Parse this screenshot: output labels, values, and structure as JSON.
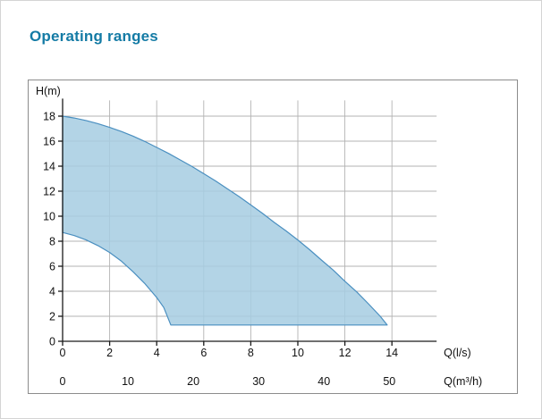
{
  "page": {
    "heading": "Operating ranges"
  },
  "chart_data": {
    "type": "area",
    "title": "Operating ranges",
    "description": "Pump operating range envelope: head H versus flow Q with dual flow scales",
    "y_axis": {
      "label": "H(m)",
      "ticks": [
        0,
        2,
        4,
        6,
        8,
        10,
        12,
        14,
        16,
        18
      ],
      "range": [
        0,
        19.4
      ]
    },
    "x_axis_primary": {
      "label": "Q(l/s)",
      "ticks": [
        0,
        2,
        4,
        6,
        8,
        10,
        12,
        14
      ],
      "range": [
        0,
        15.9
      ]
    },
    "x_axis_secondary": {
      "label": "Q(m³/h)",
      "ticks": [
        0,
        10,
        20,
        30,
        40,
        50
      ],
      "conversion_l_per_s": 3.6
    },
    "grid": true,
    "legend": "none",
    "envelope": {
      "upper": [
        [
          0,
          18
        ],
        [
          0.5,
          17.85
        ],
        [
          1,
          17.65
        ],
        [
          1.5,
          17.4
        ],
        [
          2,
          17.1
        ],
        [
          2.5,
          16.77
        ],
        [
          3,
          16.4
        ],
        [
          3.5,
          15.97
        ],
        [
          4,
          15.5
        ],
        [
          4.5,
          15.02
        ],
        [
          5,
          14.5
        ],
        [
          5.5,
          13.97
        ],
        [
          6,
          13.4
        ],
        [
          6.5,
          12.82
        ],
        [
          7,
          12.2
        ],
        [
          7.5,
          11.57
        ],
        [
          8,
          10.9
        ],
        [
          8.5,
          10.22
        ],
        [
          9,
          9.5
        ],
        [
          9.5,
          8.82
        ],
        [
          10,
          8.1
        ],
        [
          10.5,
          7.32
        ],
        [
          11,
          6.5
        ],
        [
          11.5,
          5.7
        ],
        [
          12,
          4.8
        ],
        [
          12.5,
          3.95
        ],
        [
          13,
          3.0
        ],
        [
          13.5,
          2.0
        ],
        [
          13.8,
          1.3
        ]
      ],
      "lower": [
        [
          0,
          8.7
        ],
        [
          0.5,
          8.45
        ],
        [
          1,
          8.1
        ],
        [
          1.5,
          7.65
        ],
        [
          2,
          7.1
        ],
        [
          2.5,
          6.4
        ],
        [
          3,
          5.55
        ],
        [
          3.5,
          4.6
        ],
        [
          4,
          3.5
        ],
        [
          4.3,
          2.7
        ],
        [
          4.6,
          1.3
        ],
        [
          13.8,
          1.3
        ]
      ]
    },
    "colors": {
      "fill": "#a6cde2",
      "fill_opacity": 0.85,
      "stroke": "#4a8fc0",
      "grid": "#b3b3b3",
      "axis": "#1a1a1a",
      "title": "#147ba5"
    }
  }
}
